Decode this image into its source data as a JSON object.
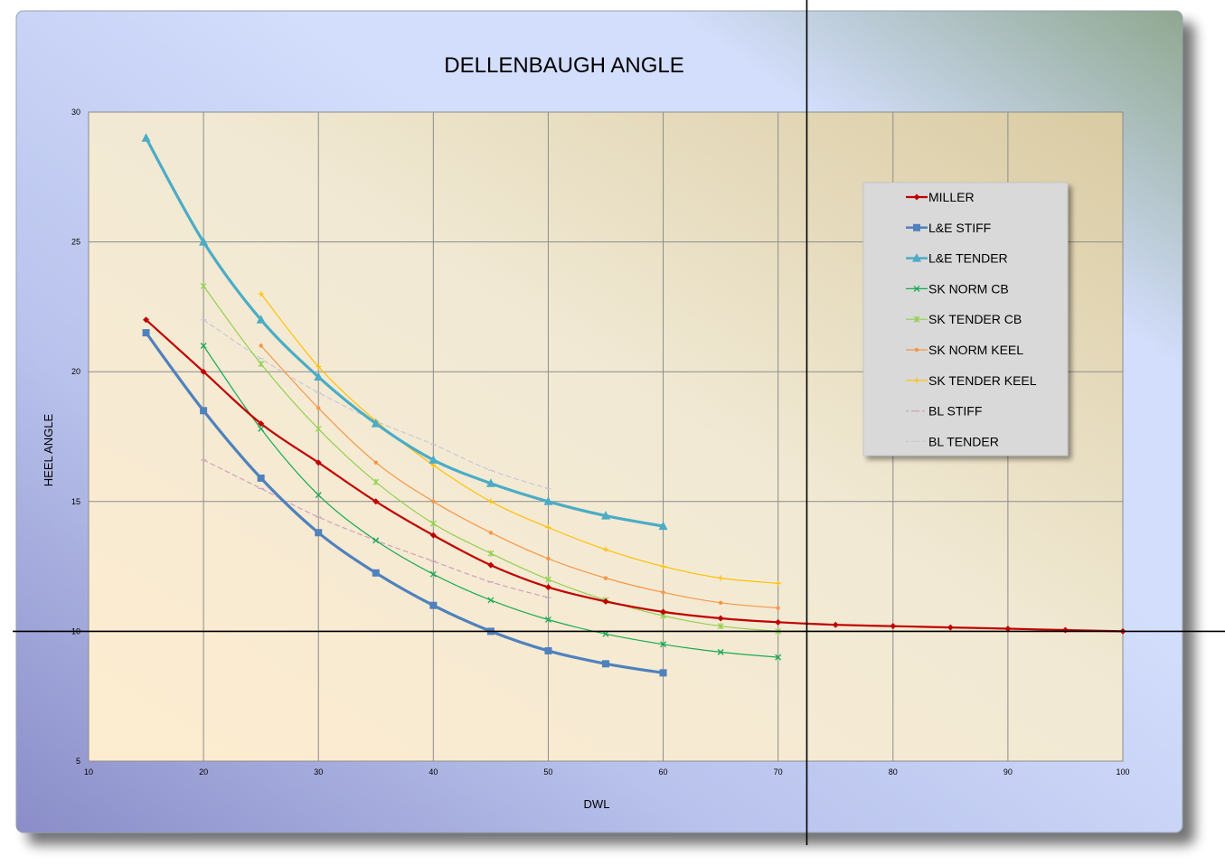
{
  "chart_data": {
    "type": "line",
    "title": "DELLENBAUGH ANGLE",
    "xlabel": "DWL",
    "ylabel": "HEEL ANGLE",
    "xlim": [
      10,
      100
    ],
    "ylim": [
      5,
      30
    ],
    "x_ticks": [
      10,
      20,
      30,
      40,
      50,
      60,
      70,
      80,
      90,
      100
    ],
    "y_ticks": [
      5,
      10,
      15,
      20,
      25,
      30
    ],
    "grid": true,
    "legend_position": "top-right",
    "crosshair": {
      "x": 72.5,
      "y": 10
    },
    "series": [
      {
        "name": "MILLER",
        "color": "#c00000",
        "width": 2.2,
        "dash": "",
        "marker": "diamond",
        "x": [
          15,
          20,
          25,
          30,
          35,
          40,
          45,
          50,
          55,
          60,
          65,
          70,
          75,
          80,
          85,
          90,
          95,
          100
        ],
        "y": [
          22,
          20,
          18,
          16.5,
          15,
          13.7,
          12.55,
          11.7,
          11.15,
          10.75,
          10.5,
          10.35,
          10.25,
          10.2,
          10.15,
          10.1,
          10.05,
          10
        ]
      },
      {
        "name": "L&E STIFF",
        "color": "#4f81bd",
        "width": 3.2,
        "dash": "",
        "marker": "square",
        "x": [
          15,
          20,
          25,
          30,
          35,
          40,
          45,
          50,
          55,
          60
        ],
        "y": [
          21.5,
          18.5,
          15.9,
          13.8,
          12.25,
          11,
          10,
          9.25,
          8.75,
          8.4
        ]
      },
      {
        "name": "L&E TENDER",
        "color": "#4bacc6",
        "width": 3.2,
        "dash": "",
        "marker": "triangle",
        "x": [
          15,
          20,
          25,
          30,
          35,
          40,
          45,
          50,
          55,
          60
        ],
        "y": [
          29,
          25,
          22,
          19.8,
          18,
          16.6,
          15.7,
          15,
          14.45,
          14.05
        ]
      },
      {
        "name": "SK NORM CB",
        "color": "#1aaa55",
        "width": 1.2,
        "dash": "",
        "marker": "x",
        "x": [
          20,
          25,
          30,
          35,
          40,
          45,
          50,
          55,
          60,
          65,
          70
        ],
        "y": [
          21,
          17.8,
          15.25,
          13.5,
          12.2,
          11.2,
          10.45,
          9.9,
          9.5,
          9.2,
          9
        ]
      },
      {
        "name": "SK TENDER CB",
        "color": "#92d050",
        "width": 1.2,
        "dash": "",
        "marker": "star",
        "x": [
          20,
          25,
          30,
          35,
          40,
          45,
          50,
          55,
          60,
          65,
          70
        ],
        "y": [
          23.3,
          20.3,
          17.8,
          15.75,
          14.15,
          13,
          12,
          11.2,
          10.6,
          10.2,
          10
        ]
      },
      {
        "name": "SK NORM KEEL",
        "color": "#f79646",
        "width": 1.2,
        "dash": "",
        "marker": "dot",
        "x": [
          25,
          30,
          35,
          40,
          45,
          50,
          55,
          60,
          65,
          70
        ],
        "y": [
          21,
          18.6,
          16.5,
          15,
          13.8,
          12.8,
          12.05,
          11.5,
          11.1,
          10.9
        ]
      },
      {
        "name": "SK TENDER KEEL",
        "color": "#ffc000",
        "width": 1.2,
        "dash": "",
        "marker": "plus",
        "x": [
          25,
          30,
          35,
          40,
          45,
          50,
          55,
          60,
          65,
          70
        ],
        "y": [
          23,
          20.2,
          18.1,
          16.4,
          15,
          14,
          13.15,
          12.5,
          12.05,
          11.85
        ]
      },
      {
        "name": "BL STIFF",
        "color": "#d0a0c0",
        "width": 1.2,
        "dash": "5,4",
        "marker": "dash",
        "x": [
          20,
          25,
          30,
          35,
          40,
          45,
          50
        ],
        "y": [
          16.6,
          15.5,
          14.4,
          13.5,
          12.7,
          11.9,
          11.3
        ]
      },
      {
        "name": "BL TENDER",
        "color": "#c8c8d8",
        "width": 1.2,
        "dash": "5,4",
        "marker": "dash",
        "x": [
          20,
          25,
          30,
          35,
          40,
          45,
          50
        ],
        "y": [
          22,
          20.5,
          19.2,
          18.1,
          17.2,
          16.2,
          15.5
        ]
      }
    ]
  }
}
